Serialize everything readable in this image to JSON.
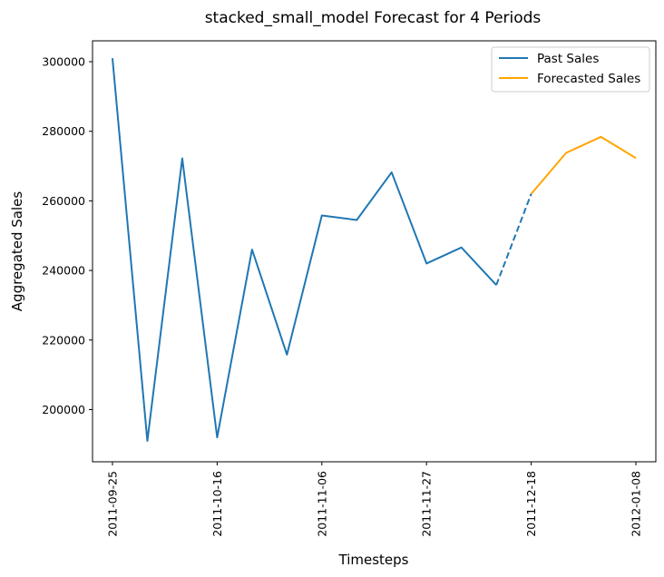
{
  "chart_data": {
    "type": "line",
    "title": "stacked_small_model Forecast for 4 Periods",
    "xlabel": "Timesteps",
    "ylabel": "Aggregated Sales",
    "x_tick_labels": [
      "2011-09-25",
      "2011-10-16",
      "2011-11-06",
      "2011-11-27",
      "2011-12-18",
      "2012-01-08"
    ],
    "y_tick_labels": [
      "200000",
      "220000",
      "240000",
      "260000",
      "280000",
      "300000"
    ],
    "ylim": [
      185000,
      306000
    ],
    "xlim": [
      "2011-09-21",
      "2012-01-12"
    ],
    "grid": false,
    "legend_position": "top-right",
    "series": [
      {
        "name": "Past Sales",
        "color": "#1f77b4",
        "style": "solid",
        "points": [
          {
            "x": "2011-09-25",
            "y": 301000
          },
          {
            "x": "2011-10-02",
            "y": 191000
          },
          {
            "x": "2011-10-09",
            "y": 272200
          },
          {
            "x": "2011-10-16",
            "y": 192000
          },
          {
            "x": "2011-10-23",
            "y": 246000
          },
          {
            "x": "2011-10-30",
            "y": 215800
          },
          {
            "x": "2011-11-06",
            "y": 255800
          },
          {
            "x": "2011-11-13",
            "y": 254500
          },
          {
            "x": "2011-11-20",
            "y": 268200
          },
          {
            "x": "2011-11-27",
            "y": 242000
          },
          {
            "x": "2011-12-04",
            "y": 246600
          },
          {
            "x": "2011-12-11",
            "y": 235800
          }
        ]
      },
      {
        "name": "Forecasted Sales",
        "color": "#ffa500",
        "style": "solid",
        "points": [
          {
            "x": "2011-12-18",
            "y": 262000
          },
          {
            "x": "2011-12-25",
            "y": 273800
          },
          {
            "x": "2012-01-01",
            "y": 278400
          },
          {
            "x": "2012-01-08",
            "y": 272300
          }
        ]
      }
    ],
    "connector": {
      "color": "#1f77b4",
      "style": "dashed",
      "from": {
        "x": "2011-12-11",
        "y": 235800
      },
      "to": {
        "x": "2011-12-18",
        "y": 262000
      }
    }
  }
}
